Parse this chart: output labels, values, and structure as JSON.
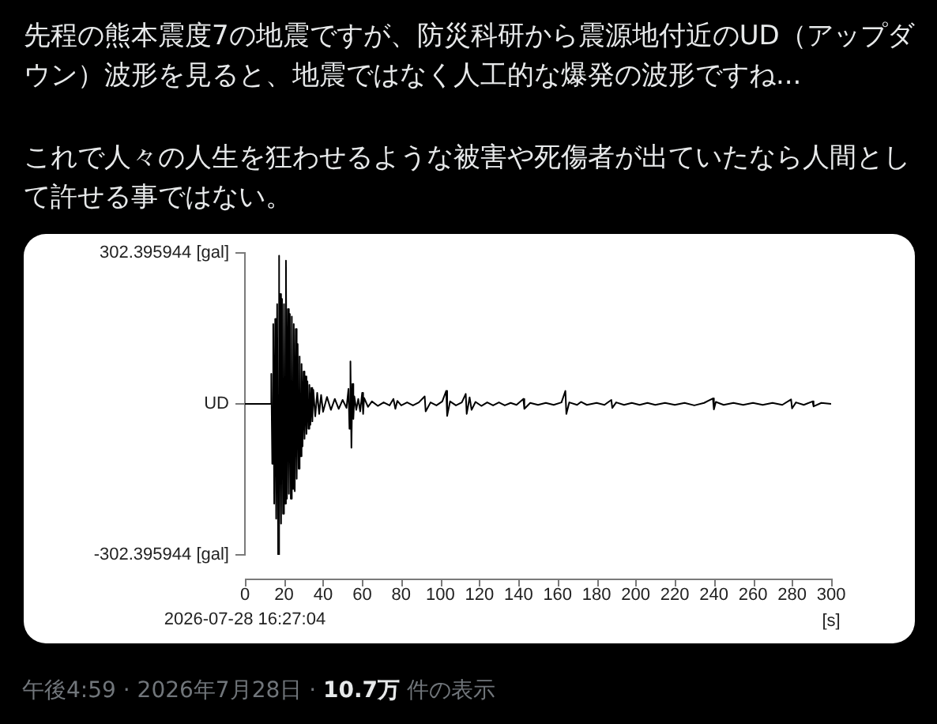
{
  "chart_data": {
    "type": "line",
    "title": "先程の熊本震度7の地震ですが、防災科研から震源地付近のUD（アップダウン）波形を見ると、地震ではなく人工的な爆発の波形ですね...",
    "subtitle": "これで人々の人生を狂わせるような被害や死傷者が出ていたなら人間として許せる事ではない。",
    "xlabel": "[s]",
    "annotations": [
      "2026-07-28 16:27:04",
      "午後4:59 · 2026年7月28日 ·",
      "10.7万",
      "件の表示"
    ],
    "x": [
      0,
      13,
      13.5,
      14,
      14.5,
      15,
      15.5,
      16,
      16.5,
      17,
      17.3,
      17.7,
      18.1,
      18.5,
      19,
      19.5,
      20,
      20.5,
      21,
      21.5,
      22,
      22.5,
      23,
      23.5,
      24,
      24.5,
      25,
      25.5,
      26,
      26.5,
      27,
      27.5,
      28,
      28.5,
      29,
      29.5,
      30,
      30.5,
      31,
      31.5,
      32,
      32.5,
      33,
      33.5,
      34,
      34.5,
      35,
      36,
      37,
      38,
      39,
      40,
      42,
      44,
      46,
      48,
      50,
      52,
      53,
      53.5,
      54,
      54.5,
      55,
      55.5,
      56,
      57,
      58,
      59,
      60,
      60.5,
      61,
      63,
      65,
      68,
      71,
      74,
      76,
      77,
      78,
      80,
      83,
      86,
      89,
      92,
      92.5,
      95,
      98,
      101,
      103,
      103.5,
      105,
      108,
      111,
      113,
      113.5,
      115,
      116,
      118,
      121,
      124,
      127,
      130,
      133,
      136,
      139,
      142.5,
      143,
      146,
      150,
      154,
      158,
      162,
      164,
      164.5,
      166,
      170,
      172,
      175,
      180,
      184,
      187.5,
      188,
      190,
      194,
      198,
      202,
      206,
      210,
      215,
      220,
      225,
      230,
      235,
      239.5,
      240,
      241,
      245,
      250,
      255,
      260,
      265,
      270,
      275,
      279.5,
      280,
      282,
      286,
      290.5,
      291,
      295,
      300
    ],
    "series": [
      {
        "color": "#000000",
        "values": [
          0,
          0,
          60,
          -120,
          160,
          -200,
          170,
          -230,
          200,
          -302,
          297,
          -250,
          220,
          -240,
          210,
          -220,
          200,
          -200,
          287,
          -190,
          190,
          -180,
          180,
          -190,
          175,
          -170,
          160,
          -175,
          150,
          -150,
          120,
          -130,
          95,
          -105,
          80,
          -85,
          65,
          -70,
          55,
          -60,
          45,
          -50,
          38,
          -42,
          32,
          -35,
          28,
          -25,
          22,
          -20,
          18,
          -16,
          14,
          -12,
          10,
          -10,
          8,
          -8,
          30,
          -50,
          85,
          -88,
          40,
          -30,
          15,
          -12,
          10,
          -15,
          22,
          -20,
          12,
          -6,
          5,
          -4,
          3,
          -3,
          10,
          -10,
          6,
          -3,
          3,
          -3,
          3,
          15,
          -15,
          3,
          -3,
          5,
          26,
          -24,
          5,
          -3,
          3,
          20,
          -20,
          13,
          -12,
          4,
          -4,
          3,
          -3,
          3,
          -3,
          2,
          -2,
          10,
          -10,
          2,
          -2,
          2,
          -2,
          3,
          26,
          -20,
          3,
          -2,
          4,
          -2,
          2,
          -2,
          8,
          -8,
          3,
          -2,
          2,
          -2,
          2,
          -2,
          2,
          -2,
          2,
          -3,
          2,
          11,
          -11,
          4,
          -2,
          2,
          -2,
          2,
          -2,
          2,
          -2,
          9,
          -9,
          3,
          -2,
          5,
          -5,
          2,
          0
        ]
      }
    ],
    "xlim": [
      0,
      300
    ],
    "xticks": [
      0,
      20,
      40,
      60,
      80,
      100,
      120,
      140,
      160,
      180,
      200,
      220,
      240,
      260,
      280,
      300
    ],
    "ylim": [
      -302.395944,
      302.395944
    ],
    "yticks": [
      {
        "value": -302.395944,
        "label": "-302.395944 [gal]"
      },
      {
        "value": 0,
        "label": "UD"
      },
      {
        "value": 302.395944,
        "label": "302.395944 [gal]"
      }
    ],
    "marker": "none"
  }
}
